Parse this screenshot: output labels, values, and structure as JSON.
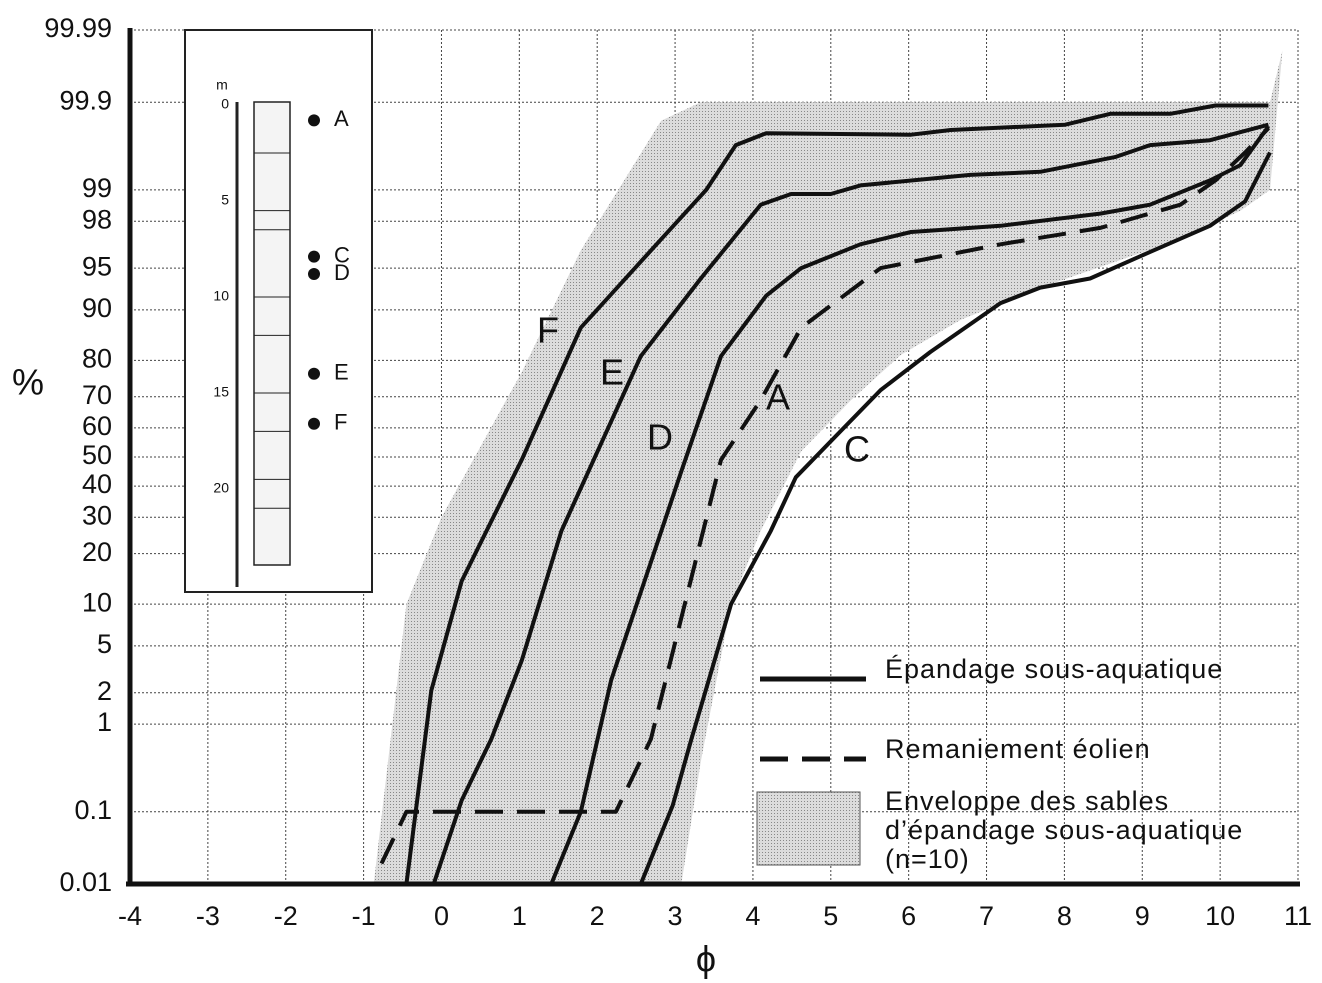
{
  "chart_data": {
    "type": "line",
    "x_label": "ϕ",
    "y_label": "%",
    "y_scale": "probability",
    "grid": true,
    "xlim": [
      -4,
      11
    ],
    "xticks": [
      -4,
      -3,
      -2,
      -1,
      0,
      1,
      2,
      3,
      4,
      5,
      6,
      7,
      8,
      9,
      10,
      11
    ],
    "ylim": [
      0.01,
      99.99
    ],
    "yticks": [
      0.01,
      0.1,
      1,
      2,
      5,
      10,
      20,
      30,
      40,
      50,
      60,
      70,
      80,
      90,
      95,
      98,
      99,
      99.9,
      99.99
    ],
    "series": [
      {
        "name": "F",
        "style": "solid",
        "color": "#111111",
        "x": [
          -0.45,
          -0.13,
          0.26,
          1.03,
          1.79,
          2.82,
          3.4,
          3.78,
          4.17,
          6.03,
          6.54,
          8.01,
          8.59,
          9.36,
          9.94,
          10.62
        ],
        "values": [
          0.01,
          2.1,
          14,
          49,
          87,
          97.1,
          99,
          99.67,
          99.76,
          99.75,
          99.78,
          99.81,
          99.86,
          99.86,
          99.89,
          99.89
        ]
      },
      {
        "name": "E",
        "style": "solid",
        "color": "#111111",
        "x": [
          -0.1,
          0.26,
          0.64,
          1.03,
          1.54,
          2.56,
          3.33,
          4.1,
          4.49,
          5.0,
          5.38,
          6.79,
          7.69,
          8.65,
          9.1,
          9.87,
          10.62
        ],
        "values": [
          0.01,
          0.14,
          0.7,
          3.8,
          26,
          81,
          94,
          98.6,
          98.9,
          98.9,
          99.1,
          99.3,
          99.35,
          99.55,
          99.67,
          99.71,
          99.81
        ]
      },
      {
        "name": "D",
        "style": "solid",
        "color": "#111111",
        "x": [
          1.41,
          1.79,
          2.18,
          2.69,
          3.08,
          3.59,
          4.17,
          4.62,
          5.38,
          6.03,
          7.18,
          8.46,
          9.1,
          9.87,
          10.26,
          10.62
        ],
        "values": [
          0.01,
          0.1,
          2.6,
          18,
          45,
          81,
          92,
          95,
          96.8,
          97.5,
          97.8,
          98.3,
          98.6,
          99.2,
          99.45,
          99.8
        ]
      },
      {
        "name": "A",
        "style": "dashed",
        "color": "#111111",
        "x": [
          -0.77,
          -0.45,
          2.24,
          2.69,
          3.59,
          4.1,
          4.62,
          5.64,
          7.18,
          8.46,
          9.49,
          9.94,
          10.32,
          10.62
        ],
        "values": [
          0.02,
          0.1,
          0.1,
          0.7,
          49,
          69,
          87,
          95,
          96.8,
          97.7,
          98.6,
          99.2,
          99.6,
          99.79
        ]
      },
      {
        "name": "C",
        "style": "solid",
        "color": "#111111",
        "x": [
          2.56,
          2.97,
          3.21,
          3.72,
          4.23,
          4.55,
          5.13,
          5.64,
          6.28,
          7.18,
          7.69,
          8.33,
          9.1,
          9.87,
          10.32,
          10.64
        ],
        "values": [
          0.01,
          0.12,
          0.7,
          10,
          26,
          43,
          59,
          72,
          82,
          91,
          93,
          94,
          96.3,
          97.8,
          98.7,
          99.6
        ]
      }
    ],
    "envelope": {
      "color": "#c8c8c8",
      "x": [
        -0.87,
        -0.45,
        0,
        1.03,
        1.79,
        2.82,
        3.33,
        10.64,
        10.8,
        10.64,
        10.26,
        9.49,
        7.82,
        6.67,
        5.9,
        5.26,
        4.62,
        4.1,
        3.72,
        3.33,
        3.08
      ],
      "values": [
        0.01,
        10,
        30,
        77,
        96.4,
        99.83,
        99.9,
        99.9,
        99.98,
        99,
        98.4,
        97.1,
        93.4,
        88.4,
        81.3,
        69,
        52,
        26,
        10,
        0.4,
        0.01
      ]
    },
    "legend": [
      {
        "label": "Épandage sous-aquatique",
        "style": "solid"
      },
      {
        "label": "Remaniement éolien",
        "style": "dashed"
      },
      {
        "label_lines": [
          "Enveloppe des sables",
          "d’épandage sous-aquatique",
          "(n=10)"
        ],
        "style": "area"
      }
    ],
    "inset": {
      "unit": "m",
      "depth_ticks": [
        0,
        5,
        10,
        15,
        20
      ],
      "samples": [
        {
          "label": "A",
          "depth": 0.8
        },
        {
          "label": "C",
          "depth": 7.9
        },
        {
          "label": "D",
          "depth": 8.8
        },
        {
          "label": "E",
          "depth": 14
        },
        {
          "label": "F",
          "depth": 16.6
        }
      ]
    }
  }
}
